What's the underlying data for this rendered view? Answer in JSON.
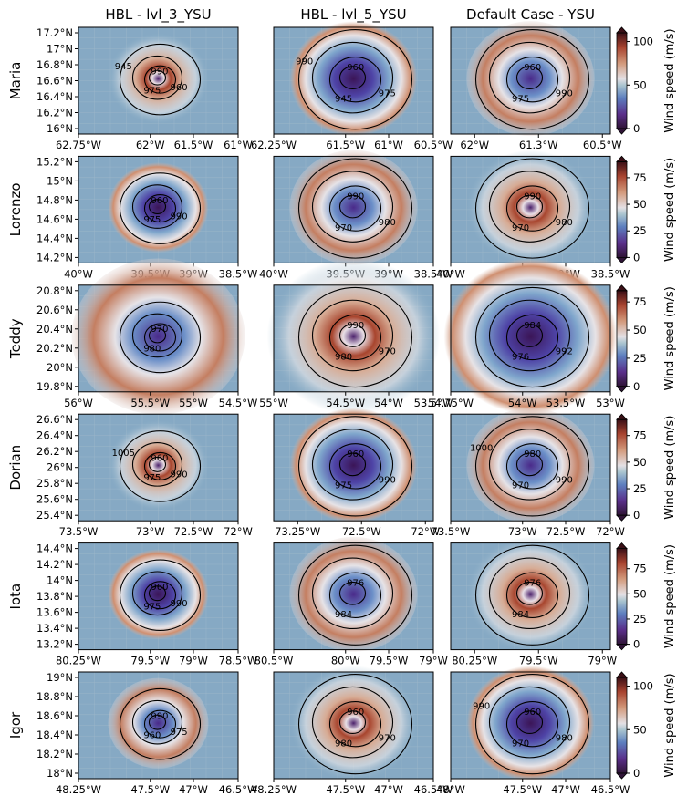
{
  "colorbar_label": "Wind speed (m/s)",
  "colormap": "twilight_shifted",
  "contour_color": "#000000",
  "chart_data": [
    {
      "type": "heatmap",
      "row_title": "Maria",
      "colorbar": {
        "range": [
          0,
          110
        ],
        "ticks": [
          0,
          50,
          100
        ]
      },
      "panels": [
        {
          "title": "HBL - lvl_3_YSU",
          "xticks": [
            "62.75°W",
            "62°W",
            "61.5°W",
            "61°W"
          ],
          "yticks": [
            "17.2°N",
            "17°N",
            "16.8°N",
            "16.6°N",
            "16.4°N",
            "16.2°N",
            "16°N"
          ],
          "contour_labels": [
            "990",
            "975",
            "960",
            "945"
          ]
        },
        {
          "title": "HBL - lvl_5_YSU",
          "xticks": [
            "62.25°W",
            "61.5°W",
            "61°W",
            "60.5°W"
          ],
          "yticks": [],
          "contour_labels": [
            "960",
            "945",
            "975",
            "990"
          ]
        },
        {
          "title": "Default Case - YSU",
          "xticks": [
            "62°W",
            "61.3°W",
            "60.5°W"
          ],
          "yticks": [],
          "contour_labels": [
            "960",
            "975",
            "990"
          ]
        }
      ]
    },
    {
      "type": "heatmap",
      "row_title": "Lorenzo",
      "colorbar": {
        "range": [
          0,
          90
        ],
        "ticks": [
          0,
          25,
          50,
          75
        ]
      },
      "panels": [
        {
          "title": "",
          "xticks": [
            "40°W",
            "39.5°W",
            "39°W",
            "38.5°W"
          ],
          "yticks": [
            "15.2°N",
            "15°N",
            "14.8°N",
            "14.6°N",
            "14.4°N",
            "14.2°N"
          ],
          "contour_labels": [
            "960",
            "975",
            "990"
          ]
        },
        {
          "title": "",
          "xticks": [
            "40°W",
            "39.5°W",
            "39°W",
            "38.5°W"
          ],
          "yticks": [],
          "contour_labels": [
            "990",
            "970",
            "980"
          ]
        },
        {
          "title": "",
          "xticks": [
            "40°W",
            "39.5°W",
            "39°W",
            "38.5°W"
          ],
          "yticks": [],
          "contour_labels": [
            "990",
            "970",
            "980"
          ]
        }
      ]
    },
    {
      "type": "heatmap",
      "row_title": "Teddy",
      "colorbar": {
        "range": [
          0,
          85
        ],
        "ticks": [
          0,
          25,
          50,
          75
        ]
      },
      "panels": [
        {
          "title": "",
          "xticks": [
            "56°W",
            "55.5°W",
            "55°W",
            "54.5°W"
          ],
          "yticks": [
            "20.8°N",
            "20.6°N",
            "20.4°N",
            "20.2°N",
            "20°N",
            "19.8°N"
          ],
          "contour_labels": [
            "970",
            "980"
          ]
        },
        {
          "title": "",
          "xticks": [
            "55°W",
            "54.5°W",
            "54°W",
            "53.5°W"
          ],
          "yticks": [],
          "contour_labels": [
            "990",
            "980",
            "970"
          ]
        },
        {
          "title": "",
          "xticks": [
            "54.75°W",
            "54°W",
            "53.5°W",
            "53°W"
          ],
          "yticks": [],
          "contour_labels": [
            "984",
            "976",
            "992"
          ]
        }
      ]
    },
    {
      "type": "heatmap",
      "row_title": "Dorian",
      "colorbar": {
        "range": [
          0,
          90
        ],
        "ticks": [
          0,
          25,
          50,
          75
        ]
      },
      "panels": [
        {
          "title": "",
          "xticks": [
            "73.5°W",
            "73°W",
            "72.5°W",
            "72°W"
          ],
          "yticks": [
            "26.6°N",
            "26.4°N",
            "26.2°N",
            "26°N",
            "25.8°N",
            "25.6°N",
            "25.4°N"
          ],
          "contour_labels": [
            "960",
            "975",
            "990",
            "1005"
          ]
        },
        {
          "title": "",
          "xticks": [
            "73.25°W",
            "72.5°W",
            "72°W"
          ],
          "yticks": [],
          "contour_labels": [
            "960",
            "975",
            "990"
          ]
        },
        {
          "title": "",
          "xticks": [
            "73.5°W",
            "73°W",
            "72.5°W",
            "72°W"
          ],
          "yticks": [],
          "contour_labels": [
            "980",
            "970",
            "990",
            "1000"
          ]
        }
      ]
    },
    {
      "type": "heatmap",
      "row_title": "Iota",
      "colorbar": {
        "range": [
          0,
          95
        ],
        "ticks": [
          0,
          25,
          50,
          75
        ]
      },
      "panels": [
        {
          "title": "",
          "xticks": [
            "80.25°W",
            "79.5°W",
            "79°W",
            "78.5°W"
          ],
          "yticks": [
            "14.4°N",
            "14.2°N",
            "14°N",
            "13.8°N",
            "13.6°N",
            "13.4°N",
            "13.2°N"
          ],
          "contour_labels": [
            "960",
            "975",
            "990"
          ]
        },
        {
          "title": "",
          "xticks": [
            "80.5°W",
            "80°W",
            "79.5°W",
            "79°W"
          ],
          "yticks": [],
          "contour_labels": [
            "976",
            "984"
          ]
        },
        {
          "title": "",
          "xticks": [
            "80.25°W",
            "79.5°W",
            "79°W"
          ],
          "yticks": [],
          "contour_labels": [
            "976",
            "984"
          ]
        }
      ]
    },
    {
      "type": "heatmap",
      "row_title": "Igor",
      "colorbar": {
        "range": [
          0,
          110
        ],
        "ticks": [
          0,
          50,
          100
        ]
      },
      "panels": [
        {
          "title": "",
          "xticks": [
            "48.25°W",
            "47.5°W",
            "47°W",
            "46.5°W"
          ],
          "yticks": [
            "19°N",
            "18.8°N",
            "18.6°N",
            "18.4°N",
            "18.2°N",
            "18°N"
          ],
          "contour_labels": [
            "990",
            "960",
            "975"
          ]
        },
        {
          "title": "",
          "xticks": [
            "48.25°W",
            "47.5°W",
            "47°W",
            "46.5°W"
          ],
          "yticks": [],
          "contour_labels": [
            "960",
            "980",
            "970"
          ]
        },
        {
          "title": "",
          "xticks": [
            "48°W",
            "47.5°W",
            "47°W",
            "46.5°W"
          ],
          "yticks": [],
          "contour_labels": [
            "960",
            "970",
            "980",
            "990"
          ]
        }
      ]
    }
  ]
}
